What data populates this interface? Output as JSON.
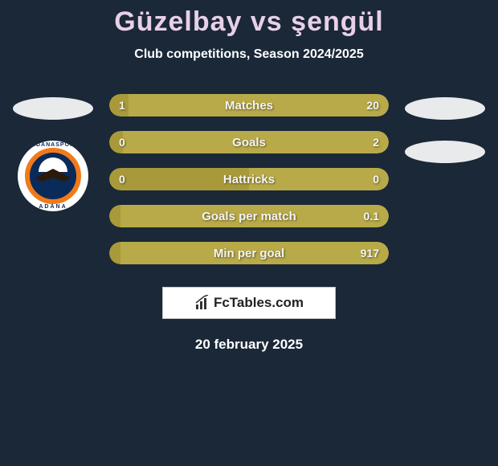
{
  "title": {
    "player1": "Güzelbay",
    "vs": "vs",
    "player2": "şengül",
    "player1_color": "#e8d0e8",
    "vs_color": "#e8d0e8",
    "player2_color": "#e8d0e8"
  },
  "subtitle": "Club competitions, Season 2024/2025",
  "background_color": "#1a2838",
  "bar_colors": {
    "player1": "#a89a3a",
    "player2": "#b8aa48"
  },
  "stats": [
    {
      "label": "Matches",
      "left_val": "1",
      "right_val": "20",
      "left_width_pct": 7
    },
    {
      "label": "Goals",
      "left_val": "0",
      "right_val": "2",
      "left_width_pct": 5
    },
    {
      "label": "Hattricks",
      "left_val": "0",
      "right_val": "0",
      "left_width_pct": 50
    },
    {
      "label": "Goals per match",
      "left_val": "",
      "right_val": "0.1",
      "left_width_pct": 4
    },
    {
      "label": "Min per goal",
      "left_val": "",
      "right_val": "917",
      "left_width_pct": 4
    }
  ],
  "brand": {
    "text": "FcTables.com"
  },
  "bottom_date": "20 february 2025",
  "crest": {
    "top_text": "ADANASPOR",
    "bottom_text": "ADANA"
  },
  "side_ovals": {
    "left_count": 1,
    "right_count": 2,
    "color": "#e9eaec"
  }
}
